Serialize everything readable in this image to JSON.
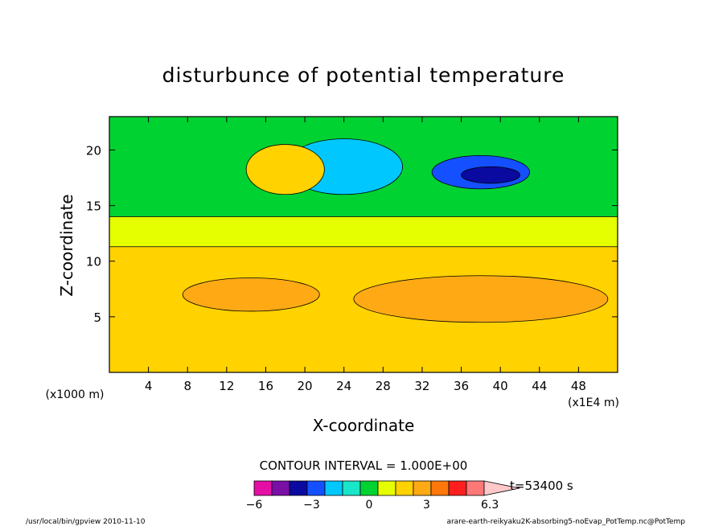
{
  "chart_data": {
    "type": "heatmap",
    "title": "disturbunce of potential temperature",
    "xlabel": "X-coordinate",
    "ylabel": "Z-coordinate",
    "x_unit_left": "(x1000 m)",
    "x_unit_right": "(x1E4 m)",
    "xlim": [
      0,
      52
    ],
    "ylim": [
      0,
      23
    ],
    "x_ticks": [
      4,
      8,
      12,
      16,
      20,
      24,
      28,
      32,
      36,
      40,
      44,
      48
    ],
    "y_ticks": [
      5,
      10,
      15,
      20
    ],
    "contour_interval_text": "CONTOUR INTERVAL = 1.000E+00",
    "time_label": "t=53400 s",
    "colorbar": {
      "levels": [
        -6,
        -5,
        -4,
        -3,
        -2,
        -1,
        0,
        1,
        2,
        3,
        4,
        5,
        6,
        6.3
      ],
      "labels": [
        "−6",
        "−3",
        "0",
        "3",
        "6.3"
      ],
      "label_values": [
        -6,
        -3,
        0,
        3,
        6.3
      ],
      "colors": [
        "#e60fa6",
        "#7a0fa6",
        "#0a0aa0",
        "#1450ff",
        "#00c8ff",
        "#19e6c8",
        "#00d232",
        "#e6ff00",
        "#ffd200",
        "#ffaa14",
        "#ff780a",
        "#ff1e1e",
        "#ff7878",
        "#ffc8c8"
      ]
    },
    "regions": [
      {
        "level": "0 to 1",
        "color": "#e6ff00",
        "x": [
          0,
          52
        ],
        "z": [
          10.8,
          16
        ]
      },
      {
        "level": "1 to 2",
        "color": "#ffd200",
        "x": [
          0,
          52
        ],
        "z": [
          0,
          11.3
        ]
      },
      {
        "level": "2 to 3",
        "color": "#ffaa14",
        "x": [
          7.5,
          21.5
        ],
        "z": [
          5.5,
          8.5
        ]
      },
      {
        "level": "2 to 3",
        "color": "#ffaa14",
        "x": [
          25,
          51
        ],
        "z": [
          4.5,
          8.7
        ]
      },
      {
        "level": "-1 to 0",
        "color": "#00d232",
        "x": [
          0,
          52
        ],
        "z": [
          14,
          23
        ]
      },
      {
        "level": "-2 to -1",
        "color": "#00c8ff",
        "x": [
          18,
          30
        ],
        "z": [
          16,
          21
        ]
      },
      {
        "level": "-4 to -2",
        "color": "#1450ff",
        "x": [
          33,
          43
        ],
        "z": [
          16.5,
          19.5
        ]
      },
      {
        "level": "-5 to -4",
        "color": "#0a0aa0",
        "x": [
          36,
          42
        ],
        "z": [
          17,
          18.5
        ]
      },
      {
        "level": "1 to 3",
        "color": "#ffd200",
        "x": [
          14,
          22
        ],
        "z": [
          16,
          20.5
        ]
      }
    ]
  },
  "footer": {
    "left": "/usr/local/bin/gpview  2010-11-10",
    "right": "arare-earth-reikyaku2K-absorbing5-noEvap_PotTemp.nc@PotTemp"
  }
}
